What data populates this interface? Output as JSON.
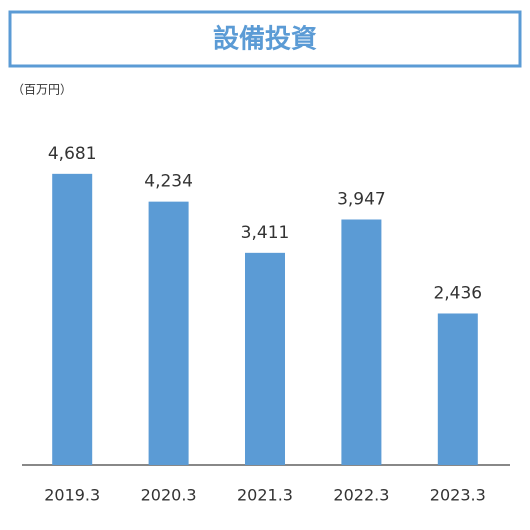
{
  "chart_data": {
    "type": "bar",
    "title": "設備投資",
    "unit_label": "（百万円）",
    "categories": [
      "2019.3",
      "2020.3",
      "2021.3",
      "2022.3",
      "2023.3"
    ],
    "values": [
      4681,
      4234,
      3411,
      3947,
      2436
    ],
    "value_labels": [
      "4,681",
      "4,234",
      "3,411",
      "3,947",
      "2,436"
    ],
    "color": "#5b9bd5"
  }
}
